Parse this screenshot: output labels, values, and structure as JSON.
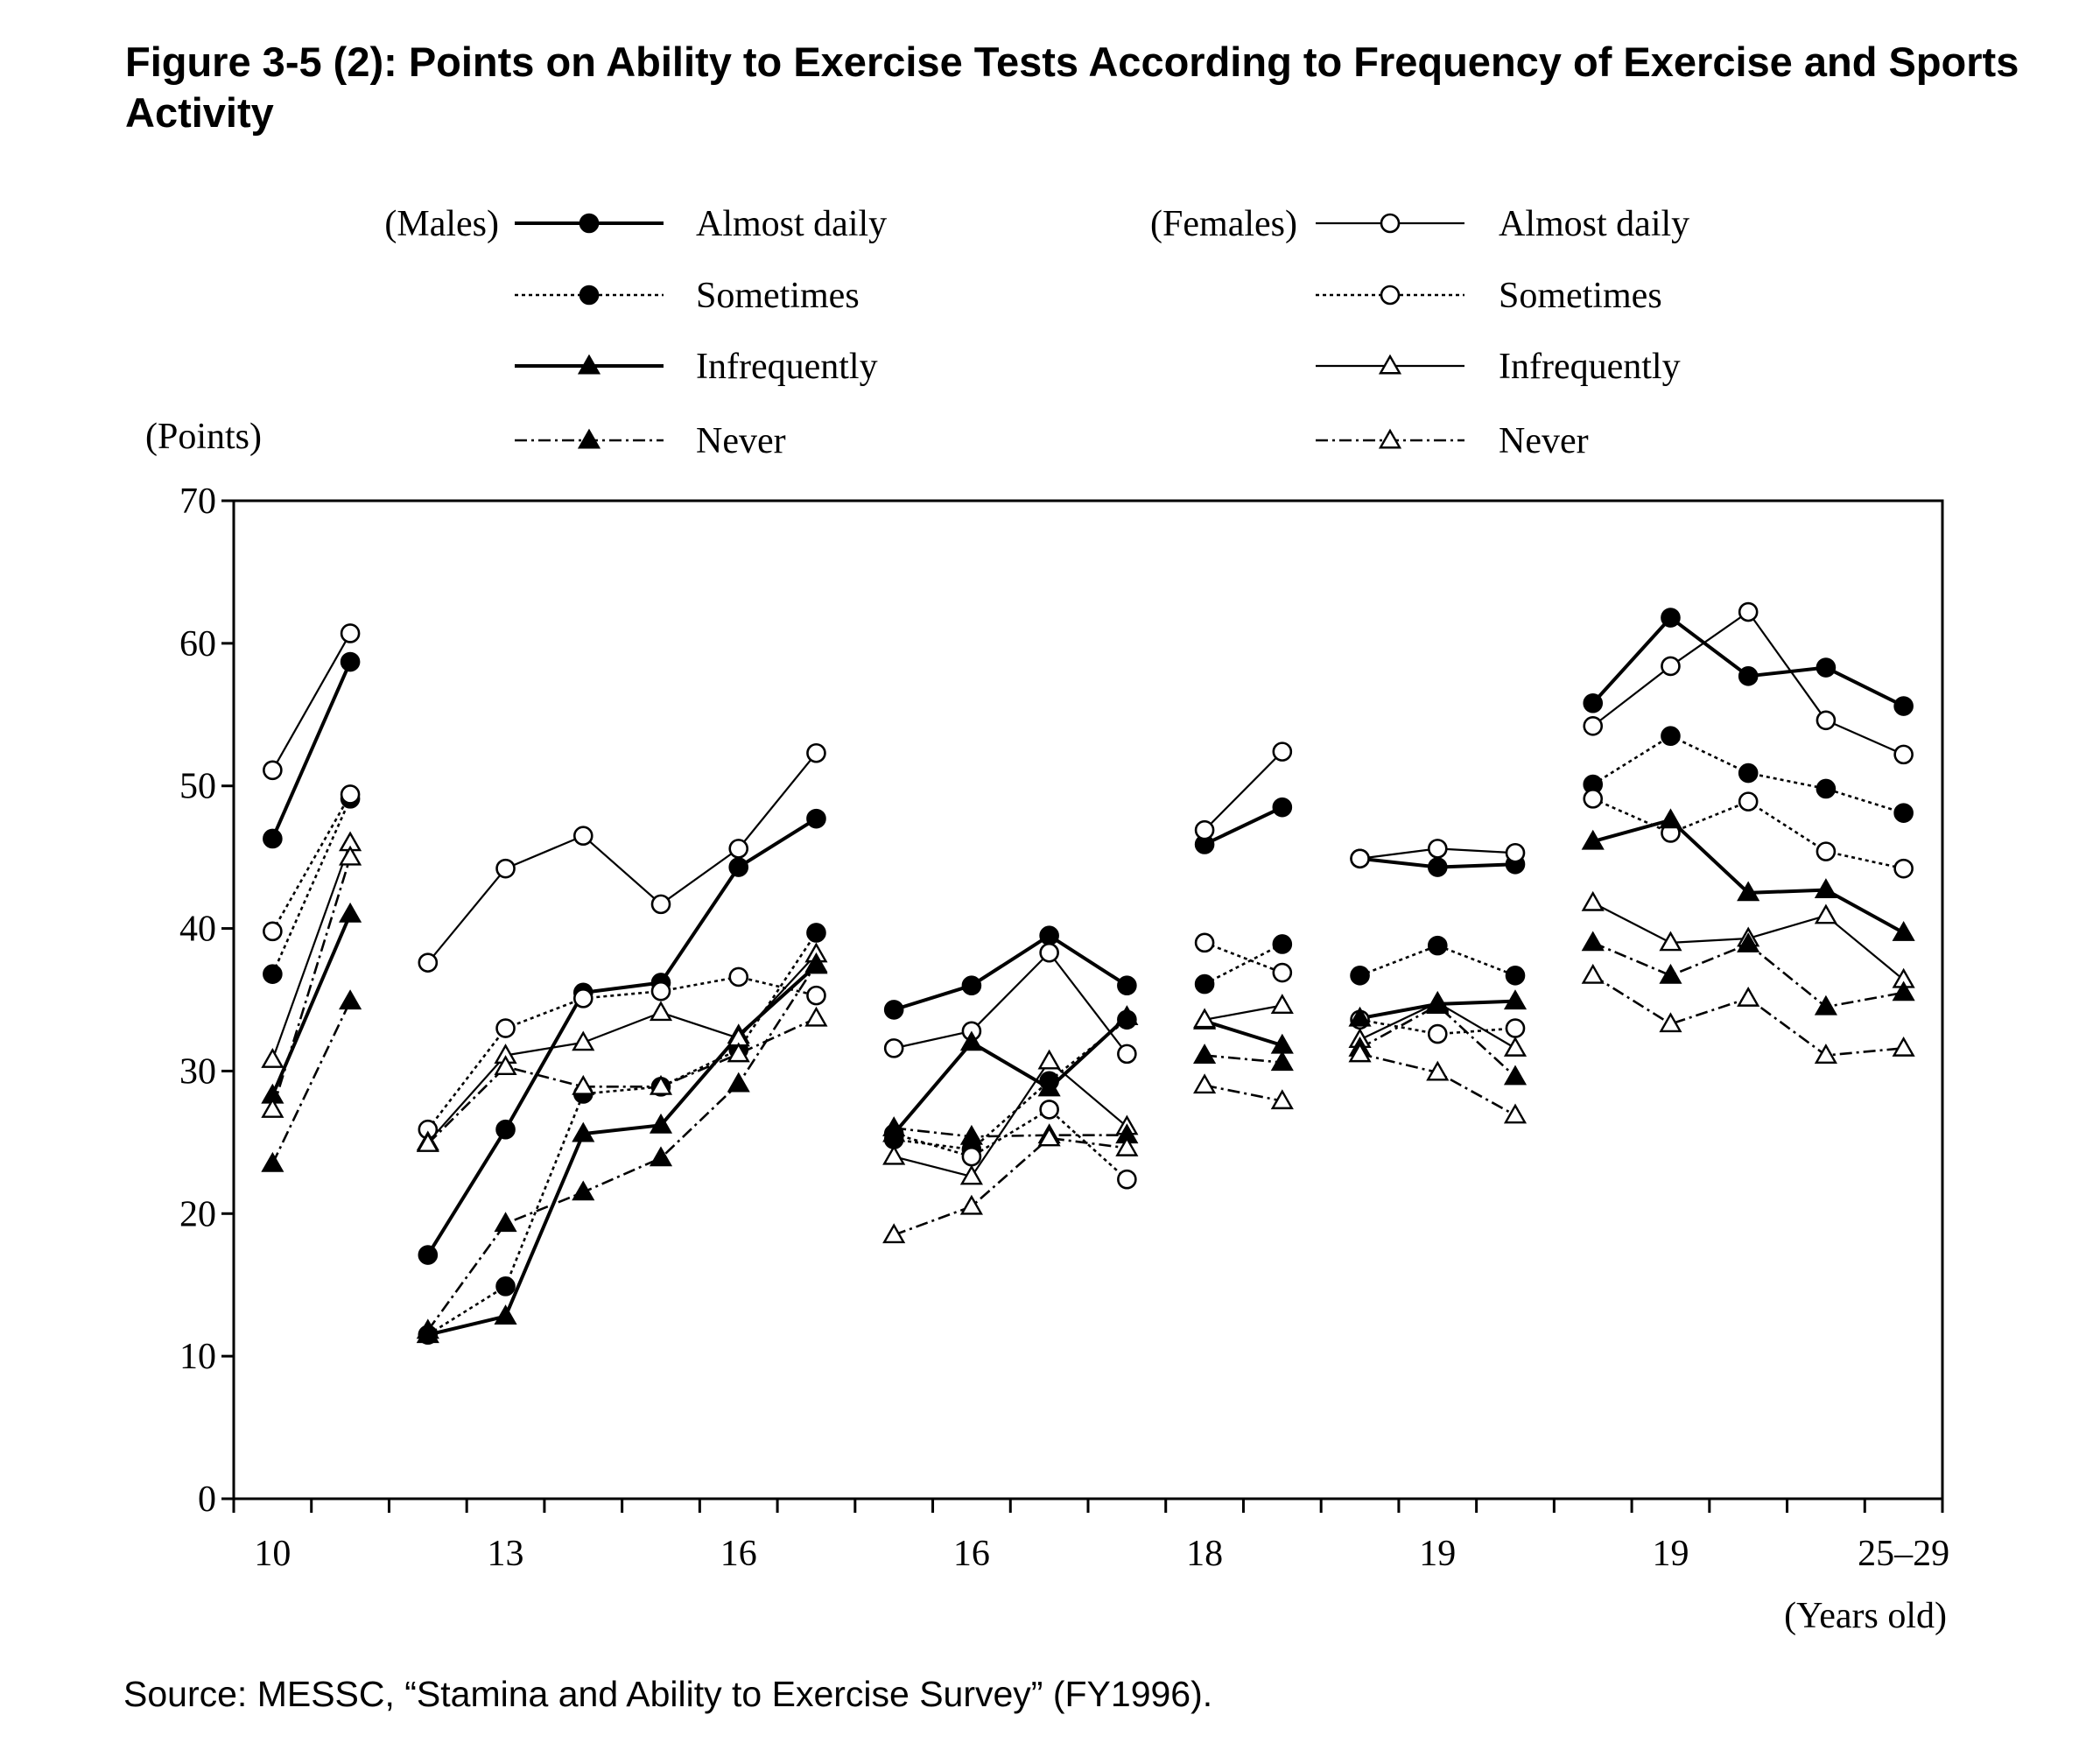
{
  "figure": {
    "title": "Figure 3-5 (2): Points on Ability to Exercise Tests According to Frequency of Exercise and Sports Activity",
    "source": "Source: MESSC, “Stamina and Ability to Exercise Survey” (FY1996)."
  },
  "chart_data": {
    "type": "line",
    "ylabel": "(Points)",
    "xlabel": "(Years old)",
    "ylim": [
      0,
      70
    ],
    "yticks": [
      0,
      10,
      20,
      30,
      40,
      50,
      60,
      70
    ],
    "x_tick_labels": [
      {
        "label": "10",
        "at": 0.5
      },
      {
        "label": "13",
        "at": 3.5
      },
      {
        "label": "16",
        "at": 6.5
      },
      {
        "label": "16",
        "at": 9.5
      },
      {
        "label": "18",
        "at": 12.5
      },
      {
        "label": "19",
        "at": 15.5
      },
      {
        "label": "19",
        "at": 18.5
      },
      {
        "label": "25–29",
        "at": 21.5
      }
    ],
    "x_range": [
      0,
      22
    ],
    "grid": false,
    "legend": {
      "groups": [
        {
          "label": "(Males)",
          "sex": "male"
        },
        {
          "label": "(Females)",
          "sex": "female"
        }
      ],
      "entries": [
        {
          "label": "Almost daily",
          "style": "solid-thick"
        },
        {
          "label": "Sometimes",
          "style": "dotted"
        },
        {
          "label": "Infrequently",
          "style": "solid-thick"
        },
        {
          "label": "Never",
          "style": "dashdot"
        }
      ]
    },
    "series": [
      {
        "sex": "male",
        "frequency": "Almost daily",
        "marker": "filled-circle",
        "style": "solid-thick",
        "segments": [
          {
            "x": [
              0.5,
              1.5
            ],
            "y": [
              46.3,
              58.7
            ]
          },
          {
            "x": [
              2.5,
              3.5,
              4.5,
              5.5,
              6.5,
              7.5
            ],
            "y": [
              17.1,
              25.9,
              35.5,
              36.2,
              44.3,
              47.7
            ]
          },
          {
            "x": [
              8.5,
              9.5,
              10.5,
              11.5
            ],
            "y": [
              34.3,
              36.0,
              39.5,
              36.0
            ]
          },
          {
            "x": [
              12.5,
              13.5
            ],
            "y": [
              45.9,
              48.5
            ]
          },
          {
            "x": [
              14.5,
              15.5,
              16.5
            ],
            "y": [
              44.9,
              44.3,
              44.5
            ]
          },
          {
            "x": [
              17.5,
              18.5,
              19.5,
              20.5,
              21.5
            ],
            "y": [
              55.8,
              61.8,
              57.7,
              58.3,
              55.6
            ]
          }
        ]
      },
      {
        "sex": "female",
        "frequency": "Almost daily",
        "marker": "open-circle",
        "style": "solid-thin",
        "segments": [
          {
            "x": [
              0.5,
              1.5
            ],
            "y": [
              51.1,
              60.7
            ]
          },
          {
            "x": [
              2.5,
              3.5,
              4.5,
              5.5,
              6.5,
              7.5
            ],
            "y": [
              37.6,
              44.2,
              46.5,
              41.7,
              45.6,
              52.3
            ]
          },
          {
            "x": [
              8.5,
              9.5,
              10.5,
              11.5
            ],
            "y": [
              31.6,
              32.8,
              38.3,
              31.2
            ]
          },
          {
            "x": [
              12.5,
              13.5
            ],
            "y": [
              46.9,
              52.4
            ]
          },
          {
            "x": [
              14.5,
              15.5,
              16.5
            ],
            "y": [
              44.9,
              45.6,
              45.3
            ]
          },
          {
            "x": [
              17.5,
              18.5,
              19.5,
              20.5,
              21.5
            ],
            "y": [
              54.2,
              58.4,
              62.2,
              54.6,
              52.2
            ]
          }
        ]
      },
      {
        "sex": "male",
        "frequency": "Sometimes",
        "marker": "filled-circle",
        "style": "dotted",
        "segments": [
          {
            "x": [
              0.5,
              1.5
            ],
            "y": [
              36.8,
              49.1
            ]
          },
          {
            "x": [
              2.5,
              3.5,
              4.5,
              5.5,
              6.5,
              7.5
            ],
            "y": [
              11.5,
              14.9,
              28.4,
              28.9,
              31.5,
              39.7
            ]
          },
          {
            "x": [
              8.5,
              9.5,
              10.5,
              11.5
            ],
            "y": [
              25.2,
              24.5,
              29.3,
              33.6
            ]
          },
          {
            "x": [
              12.5,
              13.5
            ],
            "y": [
              36.1,
              38.9
            ]
          },
          {
            "x": [
              14.5,
              15.5,
              16.5
            ],
            "y": [
              36.7,
              38.8,
              36.7
            ]
          },
          {
            "x": [
              17.5,
              18.5,
              19.5,
              20.5,
              21.5
            ],
            "y": [
              50.1,
              53.5,
              50.9,
              49.8,
              48.1
            ]
          }
        ]
      },
      {
        "sex": "female",
        "frequency": "Sometimes",
        "marker": "open-circle",
        "style": "dotted",
        "segments": [
          {
            "x": [
              0.5,
              1.5
            ],
            "y": [
              39.8,
              49.4
            ]
          },
          {
            "x": [
              2.5,
              3.5,
              4.5,
              5.5,
              6.5,
              7.5
            ],
            "y": [
              25.9,
              33.0,
              35.1,
              35.6,
              36.6,
              35.3
            ]
          },
          {
            "x": [
              8.5,
              9.5,
              10.5,
              11.5
            ],
            "y": [
              25.6,
              24.0,
              27.3,
              22.4
            ]
          },
          {
            "x": [
              12.5,
              13.5
            ],
            "y": [
              39.0,
              36.9
            ]
          },
          {
            "x": [
              14.5,
              15.5,
              16.5
            ],
            "y": [
              33.6,
              32.6,
              33.0
            ]
          },
          {
            "x": [
              17.5,
              18.5,
              19.5,
              20.5,
              21.5
            ],
            "y": [
              49.1,
              46.7,
              48.9,
              45.4,
              44.2
            ]
          }
        ]
      },
      {
        "sex": "male",
        "frequency": "Infrequently",
        "marker": "filled-triangle",
        "style": "solid-thick",
        "segments": [
          {
            "x": [
              0.5,
              1.5
            ],
            "y": [
              28.3,
              41.0
            ]
          },
          {
            "x": [
              2.5,
              3.5,
              4.5,
              5.5,
              6.5,
              7.5
            ],
            "y": [
              11.5,
              12.8,
              25.6,
              26.2,
              32.5,
              37.4
            ]
          },
          {
            "x": [
              8.5,
              9.5,
              10.5,
              11.5
            ],
            "y": [
              25.6,
              32.0,
              28.8,
              33.8
            ]
          },
          {
            "x": [
              12.5,
              13.5
            ],
            "y": [
              33.5,
              31.8
            ]
          },
          {
            "x": [
              14.5,
              15.5,
              16.5
            ],
            "y": [
              33.7,
              34.7,
              34.9
            ]
          },
          {
            "x": [
              17.5,
              18.5,
              19.5,
              20.5,
              21.5
            ],
            "y": [
              46.1,
              47.6,
              42.5,
              42.7,
              39.7
            ]
          }
        ]
      },
      {
        "sex": "female",
        "frequency": "Infrequently",
        "marker": "open-triangle",
        "style": "solid-thin",
        "segments": [
          {
            "x": [
              0.5,
              1.5
            ],
            "y": [
              30.8,
              46.0
            ]
          },
          {
            "x": [
              2.5,
              3.5,
              4.5,
              5.5,
              6.5,
              7.5
            ],
            "y": [
              25.0,
              31.1,
              32.0,
              34.1,
              32.3,
              38.2
            ]
          },
          {
            "x": [
              8.5,
              9.5,
              10.5,
              11.5
            ],
            "y": [
              24.0,
              22.6,
              30.7,
              26.1
            ]
          },
          {
            "x": [
              12.5,
              13.5
            ],
            "y": [
              33.6,
              34.6
            ]
          },
          {
            "x": [
              14.5,
              15.5,
              16.5
            ],
            "y": [
              32.2,
              34.8,
              31.6
            ]
          },
          {
            "x": [
              17.5,
              18.5,
              19.5,
              20.5,
              21.5
            ],
            "y": [
              41.8,
              39.0,
              39.3,
              40.9,
              36.4
            ]
          }
        ]
      },
      {
        "sex": "male",
        "frequency": "Never",
        "marker": "filled-triangle",
        "style": "dashdot",
        "segments": [
          {
            "x": [
              0.5,
              1.5
            ],
            "y": [
              23.5,
              34.9
            ]
          },
          {
            "x": [
              2.5,
              3.5,
              4.5,
              5.5,
              6.5,
              7.5
            ],
            "y": [
              11.8,
              19.3,
              21.5,
              23.9,
              29.1,
              37.5
            ]
          },
          {
            "x": [
              8.5,
              9.5,
              10.5,
              11.5
            ],
            "y": [
              26.0,
              25.4,
              25.5,
              25.5
            ]
          },
          {
            "x": [
              12.5,
              13.5
            ],
            "y": [
              31.1,
              30.6
            ]
          },
          {
            "x": [
              14.5,
              15.5,
              16.5
            ],
            "y": [
              31.6,
              34.6,
              29.6
            ]
          },
          {
            "x": [
              17.5,
              18.5,
              19.5,
              20.5,
              21.5
            ],
            "y": [
              39.0,
              36.7,
              38.9,
              34.5,
              35.5
            ]
          }
        ]
      },
      {
        "sex": "female",
        "frequency": "Never",
        "marker": "open-triangle",
        "style": "dashdot",
        "segments": [
          {
            "x": [
              0.5,
              1.5
            ],
            "y": [
              27.3,
              45.0
            ]
          },
          {
            "x": [
              2.5,
              3.5,
              4.5,
              5.5,
              6.5,
              7.5
            ],
            "y": [
              24.9,
              30.3,
              28.9,
              28.9,
              31.2,
              33.7
            ]
          },
          {
            "x": [
              8.5,
              9.5,
              10.5,
              11.5
            ],
            "y": [
              18.5,
              20.5,
              25.3,
              24.6
            ]
          },
          {
            "x": [
              12.5,
              13.5
            ],
            "y": [
              29.0,
              27.9
            ]
          },
          {
            "x": [
              14.5,
              15.5,
              16.5
            ],
            "y": [
              31.2,
              29.9,
              26.9
            ]
          },
          {
            "x": [
              17.5,
              18.5,
              19.5,
              20.5,
              21.5
            ],
            "y": [
              36.7,
              33.3,
              35.1,
              31.1,
              31.6
            ]
          }
        ]
      }
    ]
  }
}
